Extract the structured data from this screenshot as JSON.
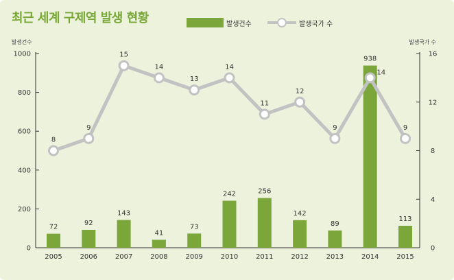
{
  "title": "최근 세계 구제역 발생 현황",
  "colors": {
    "background": "#edf2dc",
    "title": "#79a838",
    "bar": "#7aa63a",
    "line": "#c2c2c2",
    "marker_fill": "#ffffff",
    "axis": "#333333",
    "text": "#333333"
  },
  "chart_data": {
    "type": "bar",
    "title": "최근 세계 구제역 발생 현황",
    "categories": [
      "2005",
      "2006",
      "2007",
      "2008",
      "2009",
      "2010",
      "2011",
      "2012",
      "2013",
      "2014",
      "2015"
    ],
    "series": [
      {
        "name": "발생건수",
        "type": "bar",
        "axis": "left",
        "values": [
          72,
          92,
          143,
          41,
          73,
          242,
          256,
          142,
          89,
          938,
          113
        ],
        "labels": [
          "72",
          "92",
          "143",
          "41",
          "73",
          "242",
          "256",
          "142",
          "89",
          "938",
          "113"
        ]
      },
      {
        "name": "발생국가 수",
        "type": "line",
        "axis": "right",
        "values": [
          8,
          9,
          15,
          14,
          13,
          14,
          11,
          12,
          9,
          14,
          9
        ],
        "labels": [
          "8",
          "9",
          "15",
          "14",
          "13",
          "14",
          "11",
          "12",
          "9",
          "14",
          "9"
        ]
      }
    ],
    "ylabel": "발생건수",
    "ylim": [
      0,
      1000
    ],
    "yticks": [
      "0",
      "200",
      "400",
      "600",
      "800",
      "1000"
    ],
    "y2label": "발생국가 수",
    "y2lim": [
      0,
      16
    ],
    "y2ticks": [
      "0",
      "4",
      "8",
      "12",
      "16"
    ],
    "grid": false,
    "legend": "top"
  }
}
